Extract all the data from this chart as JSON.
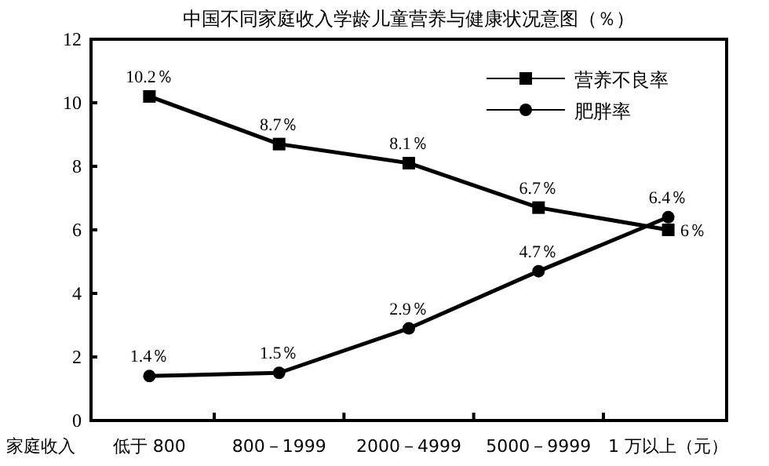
{
  "chart_data": {
    "type": "line",
    "title": "中国不同家庭收入学龄儿童营养与健康状况意图（％）",
    "xlabel": "家庭收入",
    "categories": [
      "低于  800",
      "800－1999",
      "2000－4999",
      "5000－9999",
      "1 万以上（元）"
    ],
    "series": [
      {
        "name": "营养不良率",
        "color": "#000000",
        "marker": "square",
        "values": [
          10.2,
          8.7,
          8.1,
          6.7,
          6
        ],
        "value_labels": [
          "10.2％",
          "8.7％",
          "8.1％",
          "6.7％",
          "6％"
        ]
      },
      {
        "name": "肥胖率",
        "color": "#000000",
        "marker": "circle",
        "values": [
          1.4,
          1.5,
          2.9,
          4.7,
          6.4
        ],
        "value_labels": [
          "1.4％",
          "1.5％",
          "2.9％",
          "4.7％",
          "6.4％"
        ]
      }
    ],
    "ylim": [
      0,
      12
    ],
    "yticks": [
      0,
      2,
      4,
      6,
      8,
      10,
      12
    ],
    "legend": "top right",
    "grid": false
  }
}
